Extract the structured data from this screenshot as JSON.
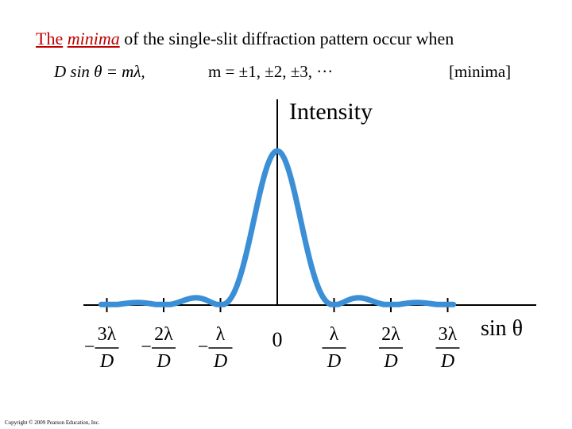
{
  "title": {
    "part1": "The",
    "part2": "minima",
    "part3": "of the single-slit diffraction pattern occur when"
  },
  "equation": {
    "lhs": "D sin θ  =  mλ,",
    "m_values": "m  =  ±1, ±2, ±3, ···",
    "tag": "[minima]"
  },
  "chart_data": {
    "type": "line",
    "title": "",
    "ylabel": "Intensity",
    "xlabel": "sin θ",
    "xlim": [
      -3.2,
      3.2
    ],
    "ylim": [
      0,
      1
    ],
    "x_ticks": [
      {
        "value": -3,
        "label_num": "3λ",
        "label_den": "D",
        "sign": "−"
      },
      {
        "value": -2,
        "label_num": "2λ",
        "label_den": "D",
        "sign": "−"
      },
      {
        "value": -1,
        "label_num": "λ",
        "label_den": "D",
        "sign": "−"
      },
      {
        "value": 0,
        "label_plain": "0"
      },
      {
        "value": 1,
        "label_num": "λ",
        "label_den": "D",
        "sign": ""
      },
      {
        "value": 2,
        "label_num": "2λ",
        "label_den": "D",
        "sign": ""
      },
      {
        "value": 3,
        "label_num": "3λ",
        "label_den": "D",
        "sign": ""
      }
    ],
    "series": [
      {
        "function": "sinc squared",
        "color": "#3b8fd6"
      }
    ],
    "minima_at": [
      -3,
      -2,
      -1,
      1,
      2,
      3
    ]
  },
  "copyright": "Copyright © 2009 Pearson Education, Inc."
}
